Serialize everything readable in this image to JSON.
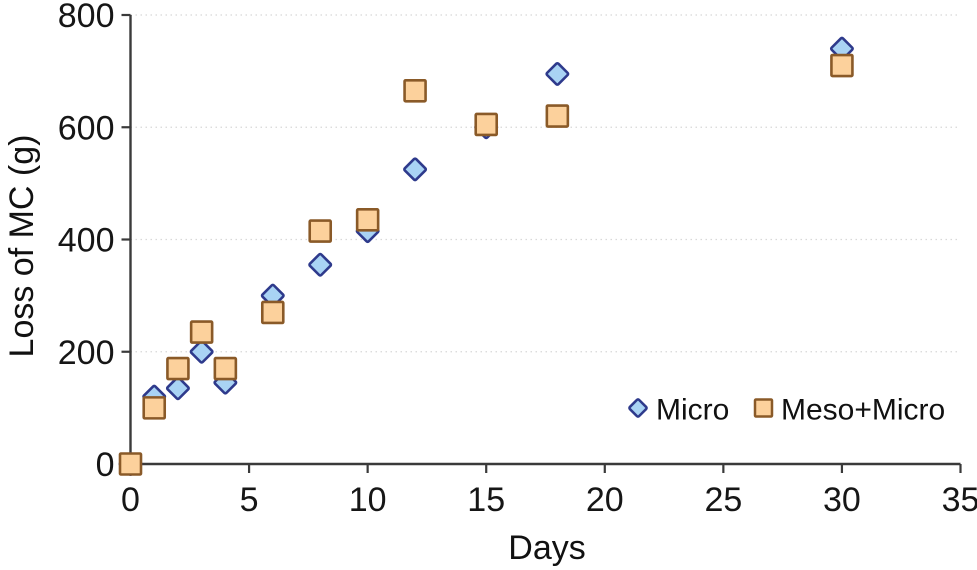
{
  "chart_data": {
    "type": "scatter",
    "title": "",
    "xlabel": "Days",
    "ylabel": "Loss of MC (g)",
    "xlim": [
      0,
      35
    ],
    "ylim": [
      0,
      800
    ],
    "x_ticks": [
      0,
      5,
      10,
      15,
      20,
      25,
      30,
      35
    ],
    "y_ticks": [
      0,
      200,
      400,
      600,
      800
    ],
    "grid": "horizontal-dotted-at-major-y-ticks",
    "legend_position": "inside-bottom-right",
    "series": [
      {
        "name": "Micro",
        "marker": "diamond",
        "fill": "#a9d3f4",
        "stroke": "#2e3a8c",
        "points": [
          [
            0,
            0
          ],
          [
            1,
            120
          ],
          [
            2,
            135
          ],
          [
            3,
            200
          ],
          [
            4,
            145
          ],
          [
            6,
            300
          ],
          [
            8,
            355
          ],
          [
            10,
            415
          ],
          [
            12,
            525
          ],
          [
            15,
            600
          ],
          [
            18,
            695
          ],
          [
            30,
            740
          ]
        ]
      },
      {
        "name": "Meso+Micro",
        "marker": "square",
        "fill": "#fcd19c",
        "stroke": "#8a5a28",
        "points": [
          [
            0,
            0
          ],
          [
            1,
            100
          ],
          [
            2,
            170
          ],
          [
            3,
            235
          ],
          [
            4,
            170
          ],
          [
            6,
            270
          ],
          [
            8,
            415
          ],
          [
            10,
            435
          ],
          [
            12,
            665
          ],
          [
            15,
            605
          ],
          [
            18,
            620
          ],
          [
            30,
            710
          ]
        ]
      }
    ]
  },
  "colors": {
    "axis": "#3a3a3a",
    "grid": "#d8d8d8",
    "text": "#161616",
    "background": "#ffffff"
  }
}
